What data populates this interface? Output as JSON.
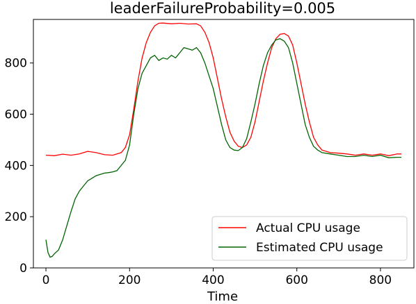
{
  "chart_data": {
    "type": "line",
    "title": "leaderFailureProbability=0.005",
    "xlabel": "Time",
    "ylabel": "",
    "xlim": [
      -30,
      880
    ],
    "ylim": [
      0,
      970
    ],
    "xticks": [
      0,
      200,
      400,
      600,
      800
    ],
    "yticks": [
      0,
      200,
      400,
      600,
      800
    ],
    "grid": false,
    "legend": "lower-right",
    "series": [
      {
        "name": "Actual CPU usage",
        "color": "#ff0000",
        "x": [
          0,
          20,
          40,
          60,
          80,
          100,
          120,
          140,
          160,
          180,
          190,
          200,
          210,
          220,
          230,
          240,
          250,
          260,
          270,
          280,
          300,
          320,
          340,
          360,
          370,
          380,
          390,
          400,
          410,
          420,
          430,
          440,
          450,
          460,
          470,
          480,
          490,
          500,
          510,
          520,
          530,
          540,
          550,
          560,
          570,
          580,
          590,
          600,
          610,
          620,
          630,
          640,
          650,
          660,
          680,
          700,
          720,
          740,
          760,
          780,
          800,
          820,
          840,
          850
        ],
        "values": [
          440,
          438,
          444,
          440,
          445,
          455,
          450,
          442,
          440,
          450,
          470,
          520,
          620,
          730,
          820,
          880,
          920,
          945,
          955,
          956,
          953,
          955,
          952,
          953,
          945,
          920,
          880,
          820,
          740,
          660,
          590,
          530,
          495,
          475,
          470,
          480,
          510,
          570,
          650,
          730,
          800,
          860,
          895,
          912,
          915,
          905,
          870,
          800,
          720,
          640,
          570,
          510,
          480,
          460,
          450,
          448,
          445,
          440,
          445,
          440,
          445,
          438,
          445,
          445
        ]
      },
      {
        "name": "Estimated CPU usage",
        "color": "#006400",
        "x": [
          0,
          5,
          10,
          15,
          20,
          30,
          40,
          50,
          60,
          70,
          80,
          90,
          100,
          110,
          120,
          130,
          140,
          150,
          160,
          170,
          180,
          190,
          200,
          210,
          220,
          230,
          240,
          250,
          260,
          270,
          280,
          290,
          300,
          310,
          320,
          330,
          340,
          350,
          360,
          370,
          380,
          390,
          400,
          410,
          420,
          430,
          440,
          450,
          460,
          470,
          480,
          490,
          500,
          510,
          520,
          530,
          540,
          550,
          560,
          570,
          580,
          590,
          600,
          610,
          620,
          630,
          640,
          650,
          660,
          680,
          700,
          720,
          740,
          760,
          780,
          800,
          820,
          840,
          850
        ],
        "values": [
          110,
          60,
          42,
          45,
          55,
          70,
          110,
          165,
          220,
          270,
          300,
          320,
          340,
          350,
          360,
          365,
          370,
          372,
          375,
          380,
          400,
          420,
          480,
          600,
          700,
          760,
          790,
          820,
          830,
          810,
          820,
          815,
          830,
          820,
          840,
          860,
          855,
          850,
          860,
          840,
          800,
          750,
          700,
          630,
          560,
          500,
          470,
          460,
          458,
          470,
          505,
          570,
          640,
          720,
          790,
          840,
          870,
          890,
          895,
          885,
          860,
          800,
          720,
          640,
          560,
          510,
          475,
          460,
          450,
          445,
          440,
          435,
          435,
          440,
          435,
          440,
          430,
          432,
          432
        ]
      }
    ]
  }
}
